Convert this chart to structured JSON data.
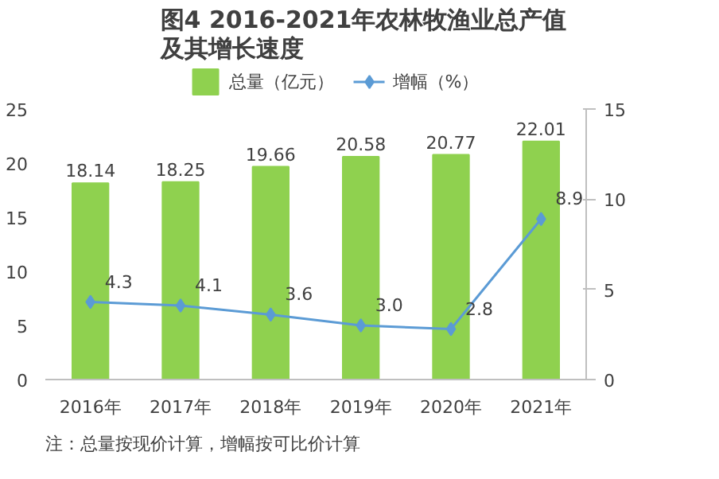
{
  "chart_data": {
    "type": "bar",
    "title": "图4 2016-2021年农林牧渔业总产值及其增长速度",
    "categories": [
      "2016年",
      "2017年",
      "2018年",
      "2019年",
      "2020年",
      "2021年"
    ],
    "series": [
      {
        "name": "总量（亿元）",
        "color": "#8fd14f",
        "values": [
          18.14,
          18.25,
          19.66,
          20.58,
          20.77,
          22.01
        ]
      },
      {
        "name": "增幅（%）",
        "type": "line",
        "axis": "y2",
        "color": "#5b9bd5",
        "values": [
          4.3,
          4.1,
          3.6,
          3.0,
          2.8,
          8.9
        ],
        "value_labels": [
          "4.3",
          "4.1",
          "3.6",
          "3.0",
          "2.8",
          "8.9"
        ]
      }
    ],
    "ylim": [
      0,
      25
    ],
    "yticks": [
      0,
      5,
      10,
      15,
      20,
      25
    ],
    "y2lim": [
      0,
      15
    ],
    "y2ticks": [
      0,
      5,
      10,
      15
    ],
    "marker": "diamond",
    "data_labels": true,
    "legend": "top",
    "grid": false,
    "annotations": [
      "注：总量按现价计算，增幅按可比价计算"
    ]
  }
}
